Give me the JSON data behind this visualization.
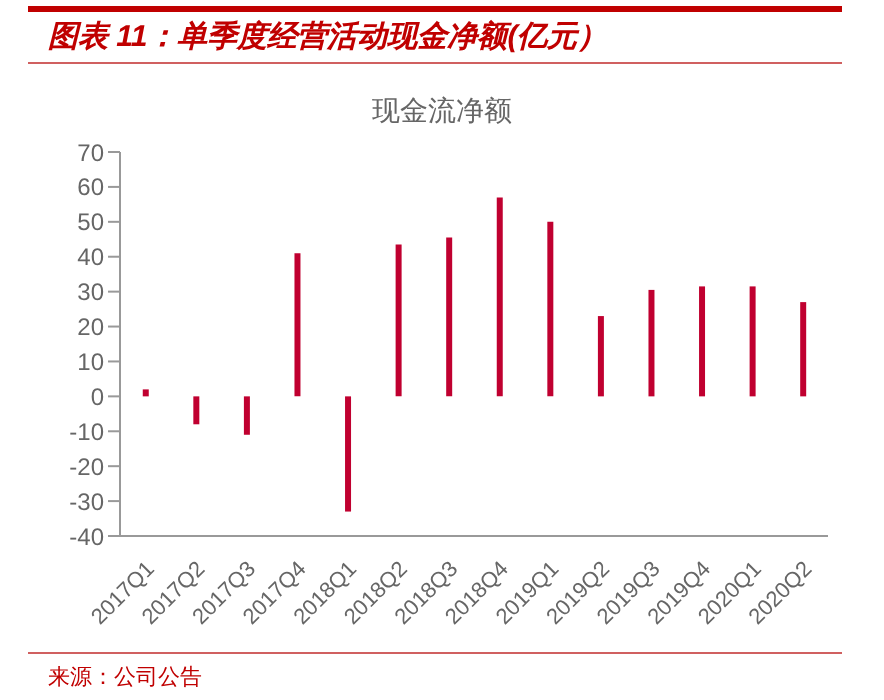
{
  "chart_data": {
    "type": "bar",
    "title": "图表 11：单季度经营活动现金净额(亿元）",
    "subtitle": "现金流净额",
    "categories": [
      "2017Q1",
      "2017Q2",
      "2017Q3",
      "2017Q4",
      "2018Q1",
      "2018Q2",
      "2018Q3",
      "2018Q4",
      "2019Q1",
      "2019Q2",
      "2019Q3",
      "2019Q4",
      "2020Q1",
      "2020Q2"
    ],
    "values": [
      2,
      -8,
      -11,
      41,
      -33,
      43.5,
      45.5,
      57,
      50,
      23,
      30.5,
      31.5,
      31.5,
      27
    ],
    "color": "#c00030",
    "ylim": [
      -40,
      70
    ],
    "yticks": [
      -40,
      -30,
      -20,
      -10,
      0,
      10,
      20,
      30,
      40,
      50,
      60,
      70
    ],
    "annotations": [
      "来源：公司公告"
    ]
  }
}
